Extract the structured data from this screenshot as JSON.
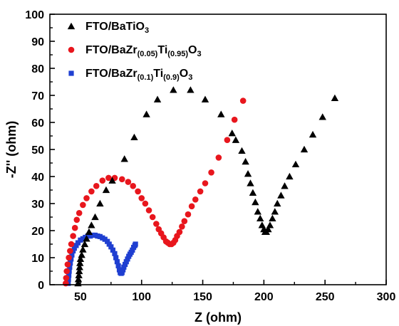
{
  "chart_data": {
    "type": "scatter",
    "xlabel": "Z (ohm)",
    "ylabel": "-Z'' (ohm)",
    "xlim": [
      25,
      300
    ],
    "ylim": [
      0,
      100
    ],
    "x_ticks": [
      50,
      100,
      150,
      200,
      250,
      300
    ],
    "y_ticks": [
      0,
      10,
      20,
      30,
      40,
      50,
      60,
      70,
      80,
      90,
      100
    ],
    "legend_position": "top-left",
    "series": [
      {
        "name_parts": [
          {
            "t": "FTO/BaTiO",
            "sub": false
          },
          {
            "t": "3",
            "sub": true
          }
        ],
        "marker": "triangle",
        "color": "#000000",
        "points": [
          [
            48,
            0.5
          ],
          [
            48.3,
            2
          ],
          [
            48.7,
            3.5
          ],
          [
            49,
            5
          ],
          [
            49.3,
            6.5
          ],
          [
            49.6,
            8
          ],
          [
            50,
            9.5
          ],
          [
            51,
            11
          ],
          [
            52,
            13
          ],
          [
            53.5,
            15
          ],
          [
            55,
            17
          ],
          [
            57,
            19.5
          ],
          [
            59,
            22
          ],
          [
            62,
            25
          ],
          [
            66,
            30
          ],
          [
            71,
            35
          ],
          [
            76,
            38.5
          ],
          [
            86,
            46.5
          ],
          [
            94,
            54.5
          ],
          [
            104,
            63
          ],
          [
            113,
            68.5
          ],
          [
            126,
            72
          ],
          [
            140,
            72
          ],
          [
            152,
            68.5
          ],
          [
            165,
            63
          ],
          [
            174,
            56
          ],
          [
            177,
            53.5
          ],
          [
            182,
            49.5
          ],
          [
            185,
            45.5
          ],
          [
            187,
            41
          ],
          [
            189,
            37.5
          ],
          [
            191,
            34
          ],
          [
            193,
            30.5
          ],
          [
            195,
            27
          ],
          [
            197,
            24.5
          ],
          [
            198.5,
            22
          ],
          [
            200,
            20.5
          ],
          [
            201,
            19.5
          ],
          [
            202,
            19.5
          ],
          [
            203.5,
            20.5
          ],
          [
            205,
            22
          ],
          [
            207,
            24.5
          ],
          [
            209,
            27
          ],
          [
            211,
            30
          ],
          [
            214,
            33
          ],
          [
            217,
            36.5
          ],
          [
            221,
            40
          ],
          [
            226,
            44.5
          ],
          [
            233,
            50
          ],
          [
            240,
            55.5
          ],
          [
            248,
            62
          ],
          [
            258,
            69
          ]
        ]
      },
      {
        "name_parts": [
          {
            "t": "FTO/BaZr",
            "sub": false
          },
          {
            "t": "(0.05)",
            "sub": true
          },
          {
            "t": "Ti",
            "sub": false
          },
          {
            "t": "(0.95)",
            "sub": true
          },
          {
            "t": "O",
            "sub": false
          },
          {
            "t": "3",
            "sub": true
          }
        ],
        "marker": "circle",
        "color": "#e8161d",
        "points": [
          [
            38,
            0.5
          ],
          [
            38.3,
            2.5
          ],
          [
            38.8,
            5
          ],
          [
            39.5,
            7.5
          ],
          [
            40.5,
            10
          ],
          [
            41.5,
            12.5
          ],
          [
            42.5,
            15
          ],
          [
            44,
            18
          ],
          [
            45.5,
            21
          ],
          [
            47,
            24
          ],
          [
            49,
            26.5
          ],
          [
            52,
            29.5
          ],
          [
            55,
            32
          ],
          [
            59,
            34.5
          ],
          [
            63,
            36.5
          ],
          [
            68,
            38.5
          ],
          [
            73,
            39.5
          ],
          [
            78,
            39.5
          ],
          [
            84,
            39
          ],
          [
            89,
            38
          ],
          [
            93,
            36.5
          ],
          [
            97,
            34.5
          ],
          [
            100,
            32
          ],
          [
            103,
            30
          ],
          [
            106,
            27.5
          ],
          [
            109,
            25
          ],
          [
            112,
            22.5
          ],
          [
            114,
            20.5
          ],
          [
            116,
            19
          ],
          [
            118,
            17.5
          ],
          [
            120,
            16
          ],
          [
            121.5,
            15.5
          ],
          [
            123,
            15
          ],
          [
            124.5,
            15
          ],
          [
            126,
            15.5
          ],
          [
            127.5,
            16.5
          ],
          [
            129,
            18
          ],
          [
            131,
            19.5
          ],
          [
            133,
            21.5
          ],
          [
            135,
            23.5
          ],
          [
            138,
            26
          ],
          [
            141,
            29
          ],
          [
            144,
            31.5
          ],
          [
            148,
            34.5
          ],
          [
            152,
            37.5
          ],
          [
            157,
            41.5
          ],
          [
            163,
            47
          ],
          [
            170,
            53.5
          ],
          [
            176,
            61
          ],
          [
            183,
            68
          ]
        ]
      },
      {
        "name_parts": [
          {
            "t": "FTO/BaZr",
            "sub": false
          },
          {
            "t": "(0.1)",
            "sub": true
          },
          {
            "t": "Ti",
            "sub": false
          },
          {
            "t": "(0.9)",
            "sub": true
          },
          {
            "t": "O",
            "sub": false
          },
          {
            "t": "3",
            "sub": true
          }
        ],
        "marker": "square",
        "color": "#1f3fd1",
        "points": [
          [
            40,
            0.5
          ],
          [
            40.2,
            2
          ],
          [
            40.5,
            3.5
          ],
          [
            40.8,
            5
          ],
          [
            41.2,
            6.5
          ],
          [
            41.7,
            8
          ],
          [
            42.3,
            9.5
          ],
          [
            43,
            11
          ],
          [
            44,
            12.5
          ],
          [
            45,
            13.5
          ],
          [
            46.5,
            14.5
          ],
          [
            48,
            15.5
          ],
          [
            50,
            16.5
          ],
          [
            52,
            17
          ],
          [
            54,
            17.5
          ],
          [
            56,
            18
          ],
          [
            58,
            18
          ],
          [
            60,
            18.3
          ],
          [
            62,
            18.3
          ],
          [
            64,
            18
          ],
          [
            66,
            17.8
          ],
          [
            68,
            17.3
          ],
          [
            70,
            16.8
          ],
          [
            72,
            16
          ],
          [
            73.5,
            15
          ],
          [
            75,
            14
          ],
          [
            76.5,
            12.8
          ],
          [
            78,
            11.5
          ],
          [
            79,
            10
          ],
          [
            80,
            8.5
          ],
          [
            81,
            7
          ],
          [
            81.8,
            5.5
          ],
          [
            82.5,
            4.5
          ],
          [
            83.3,
            4.2
          ],
          [
            84,
            4.5
          ],
          [
            84.8,
            5.5
          ],
          [
            85.5,
            6.5
          ],
          [
            86.5,
            7.5
          ],
          [
            87.5,
            8.5
          ],
          [
            88.5,
            9.5
          ],
          [
            89.5,
            10.5
          ],
          [
            90.5,
            11.3
          ],
          [
            91.5,
            12
          ],
          [
            92.5,
            12.8
          ],
          [
            93.5,
            13.8
          ],
          [
            94.5,
            14.5
          ],
          [
            95,
            15
          ]
        ]
      }
    ]
  }
}
